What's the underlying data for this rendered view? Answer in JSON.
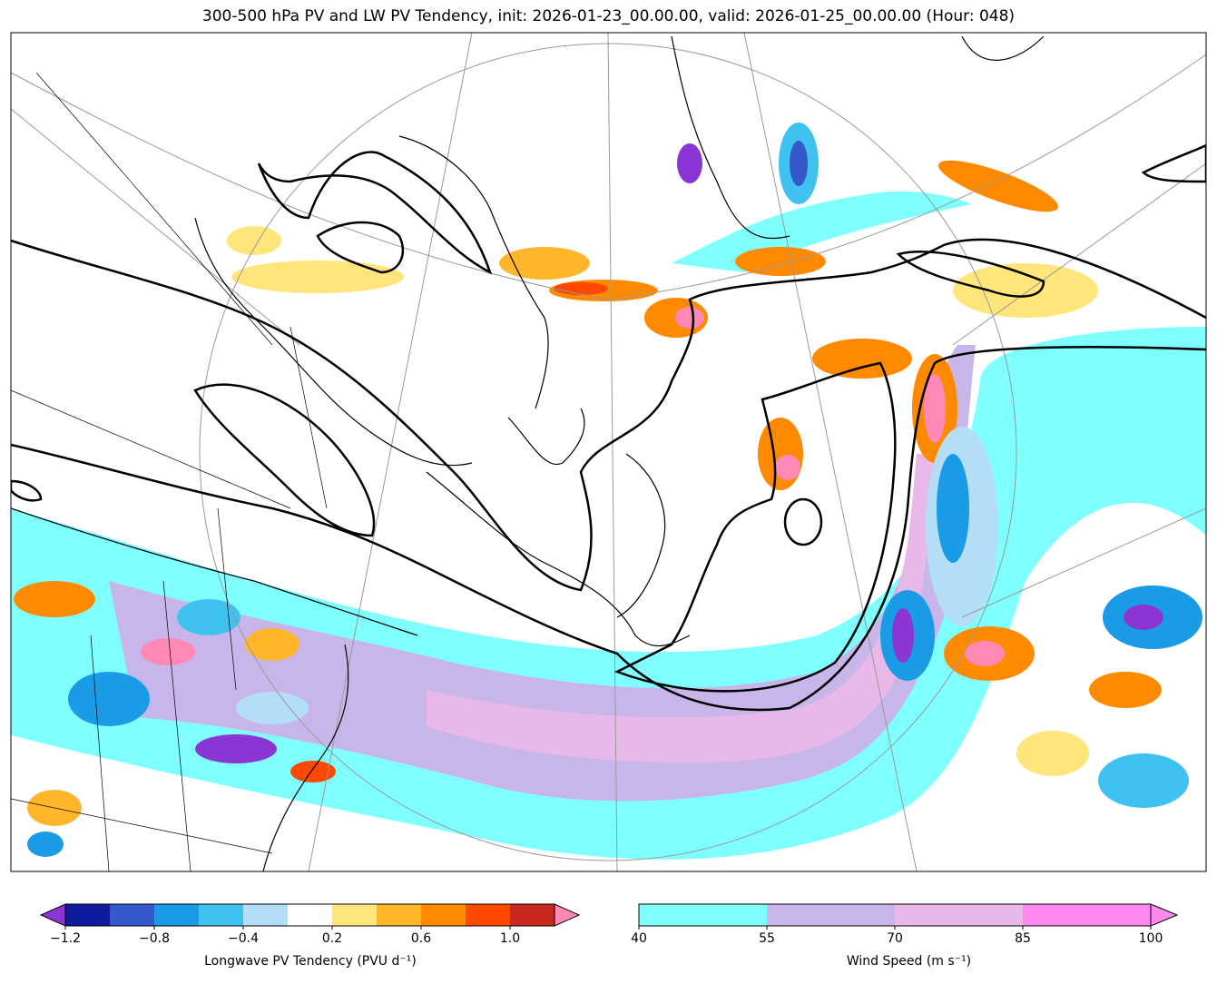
{
  "title": "300-500 hPa PV and LW PV Tendency, init: 2026-01-23_00.00.00, valid: 2026-01-25_00.00.00 (Hour: 048)",
  "init_time": "2026-01-23_00.00.00",
  "valid_time": "2026-01-25_00.00.00",
  "forecast_hour": "048",
  "pv_colorbar": {
    "label": "Longwave PV Tendency (PVU d⁻¹)",
    "units": "PVU d-1",
    "tick_labels": [
      "−1.2",
      "−0.8",
      "−0.4",
      "0.2",
      "0.6",
      "1.0"
    ],
    "tick_values": [
      -1.2,
      -0.8,
      -0.4,
      0.2,
      0.6,
      1.0
    ],
    "levels": [
      -1.2,
      -1.0,
      -0.8,
      -0.6,
      -0.4,
      -0.2,
      0.2,
      0.4,
      0.6,
      0.8,
      1.0,
      1.2
    ],
    "colors": [
      "#0d1b9c",
      "#3457c9",
      "#1a9be6",
      "#3fc2f0",
      "#b4def7",
      "#ffffff",
      "#ffe57a",
      "#ffb62a",
      "#ff8a00",
      "#ff4800",
      "#c8281d"
    ],
    "under_color": "#8b35d4",
    "over_color": "#ff88b4",
    "extend": "both"
  },
  "wind_colorbar": {
    "label": "Wind Speed (m s⁻¹)",
    "units": "m s-1",
    "tick_labels": [
      "40",
      "55",
      "70",
      "85",
      "100"
    ],
    "tick_values": [
      40,
      55,
      70,
      85,
      100
    ],
    "colors": [
      "#80ffff",
      "#c8b6ea",
      "#e8b8e8",
      "#ff88f0"
    ],
    "over_color": "#ff88f0",
    "extend": "max"
  },
  "pv_contour": {
    "value_pvu": 2,
    "color": "#000000"
  }
}
